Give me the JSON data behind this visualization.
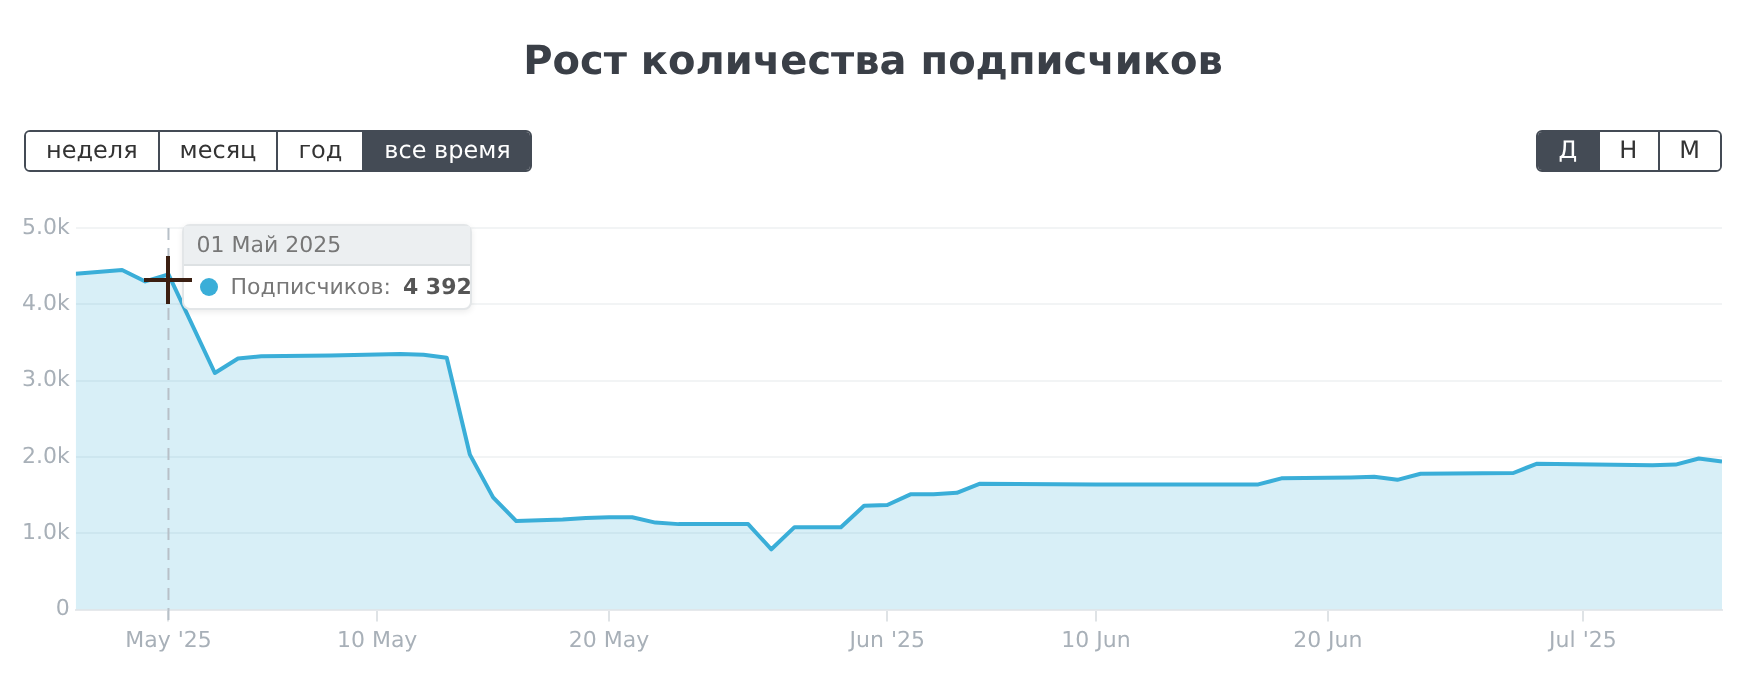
{
  "chart_data": {
    "type": "area",
    "title": "Рост количества подписчиков",
    "x": [
      "2025-04-27",
      "2025-04-29",
      "2025-04-30",
      "2025-05-01",
      "2025-05-02",
      "2025-05-03",
      "2025-05-04",
      "2025-05-05",
      "2025-05-08",
      "2025-05-11",
      "2025-05-12",
      "2025-05-13",
      "2025-05-14",
      "2025-05-15",
      "2025-05-16",
      "2025-05-17",
      "2025-05-18",
      "2025-05-19",
      "2025-05-20",
      "2025-05-21",
      "2025-05-22",
      "2025-05-23",
      "2025-05-26",
      "2025-05-27",
      "2025-05-28",
      "2025-05-30",
      "2025-05-31",
      "2025-06-01",
      "2025-06-02",
      "2025-06-03",
      "2025-06-04",
      "2025-06-05",
      "2025-06-10",
      "2025-06-17",
      "2025-06-18",
      "2025-06-21",
      "2025-06-22",
      "2025-06-23",
      "2025-06-24",
      "2025-06-28",
      "2025-06-29",
      "2025-07-04",
      "2025-07-05",
      "2025-07-06",
      "2025-07-07"
    ],
    "series": [
      {
        "name": "Подписчиков:",
        "color": "#3aaed8",
        "values": [
          4400,
          4450,
          4300,
          4392,
          null,
          3100,
          3290,
          3320,
          3330,
          3350,
          3340,
          3300,
          2030,
          1470,
          1160,
          1170,
          1180,
          1200,
          1210,
          1210,
          1140,
          1120,
          1120,
          790,
          1080,
          1080,
          1360,
          1370,
          1510,
          1510,
          1530,
          1650,
          1640,
          1640,
          1720,
          1730,
          1740,
          1700,
          1780,
          1790,
          1910,
          1890,
          1900,
          1980,
          1940
        ]
      }
    ],
    "xlim": [
      "2025-04-27",
      "2025-07-07"
    ],
    "xticks": [
      {
        "value": "2025-05-01",
        "label": "May '25"
      },
      {
        "value": "2025-05-10",
        "label": "10 May"
      },
      {
        "value": "2025-05-20",
        "label": "20 May"
      },
      {
        "value": "2025-06-01",
        "label": "Jun '25"
      },
      {
        "value": "2025-06-10",
        "label": "10 Jun"
      },
      {
        "value": "2025-06-20",
        "label": "20 Jun"
      },
      {
        "value": "2025-07-01",
        "label": "Jul '25"
      }
    ],
    "ylim": [
      0,
      5000
    ],
    "yticks": [
      0,
      {
        "value": 1000,
        "label": "1.0k"
      },
      {
        "value": 2000,
        "label": "2.0k"
      },
      {
        "value": 3000,
        "label": "3.0k"
      },
      {
        "value": 4000,
        "label": "4.0k"
      },
      {
        "value": 5000,
        "label": "5.0k"
      }
    ],
    "grid": "y",
    "legend": "top left",
    "marker": "none",
    "line_style": "solid",
    "ref_lines": [
      {
        "axis": "x",
        "value": "2025-05-01",
        "color": "#b8c0c8",
        "line_style": "dashed"
      }
    ],
    "annotations": [
      "неделя",
      "месяц",
      "год",
      "все время",
      "Д",
      "Н",
      "М",
      "4 392",
      {
        "text": "01 Май 2025",
        "x": "2025-05-01",
        "y": 4392
      }
    ]
  }
}
